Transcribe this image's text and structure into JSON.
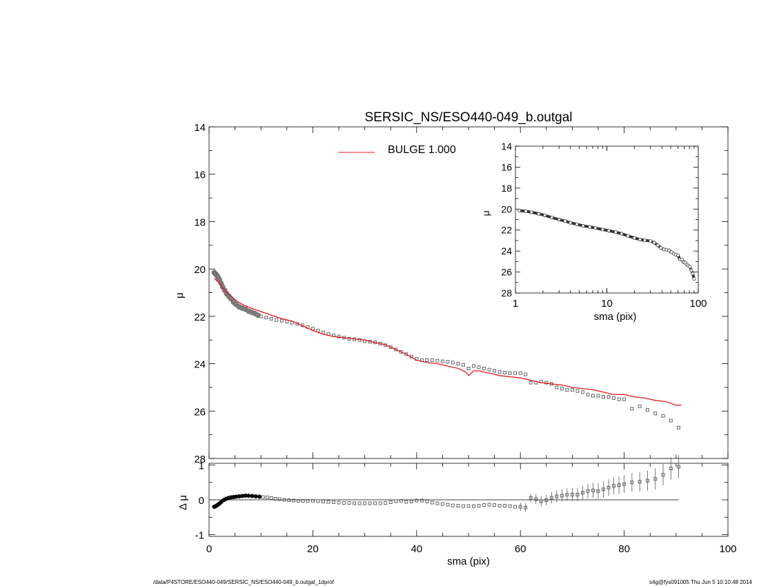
{
  "title": "SERSIC_NS/ESO440-049_b.outgal",
  "footer": {
    "path": "/data/P4STORE/ESO440-049/SERSIC_NS/ESO440-049_b.outgal_1dprof",
    "stamp": "s4g@fys091005  Thu Jun  5 10:10:48 2014"
  },
  "colors": {
    "model": "#e41a1c",
    "data": "#808080",
    "axes": "#000000"
  },
  "chart_data": [
    {
      "name": "main",
      "type": "scatter",
      "title": "SERSIC_NS/ESO440-049_b.outgal",
      "xlabel": "sma (pix)",
      "ylabel": "μ",
      "xlim": [
        0,
        100
      ],
      "ylim": [
        28,
        14
      ],
      "y_inverted": true,
      "x_ticks": [
        "0",
        "20",
        "40",
        "60",
        "80",
        "100"
      ],
      "y_ticks": [
        "14",
        "16",
        "18",
        "20",
        "22",
        "24",
        "26",
        "28"
      ],
      "legend": [
        {
          "label": "BULGE  1.000",
          "color": "#e41a1c"
        }
      ],
      "legend_position": "top-center",
      "series": [
        {
          "name": "BULGE  1.000",
          "kind": "line",
          "color": "#e41a1c",
          "x": [
            1,
            2,
            3,
            4,
            5,
            6,
            8,
            10,
            12,
            14,
            16,
            18,
            20,
            22,
            24,
            26,
            28,
            30,
            32,
            34,
            36,
            38,
            40,
            42,
            44,
            46,
            48,
            49.5,
            50,
            51,
            52,
            54,
            56,
            58,
            60,
            62,
            64,
            66,
            68,
            70,
            72,
            74,
            76,
            78,
            80,
            82,
            84,
            86,
            88,
            90,
            91
          ],
          "y": [
            20.4,
            20.6,
            20.9,
            21.1,
            21.3,
            21.45,
            21.65,
            21.8,
            21.95,
            22.1,
            22.2,
            22.4,
            22.6,
            22.75,
            22.85,
            22.9,
            22.95,
            23.0,
            23.1,
            23.2,
            23.4,
            23.6,
            23.85,
            23.95,
            24.0,
            24.1,
            24.2,
            24.35,
            24.5,
            24.3,
            24.3,
            24.4,
            24.5,
            24.55,
            24.6,
            24.7,
            24.8,
            24.85,
            24.9,
            25.0,
            25.05,
            25.1,
            25.2,
            25.3,
            25.3,
            25.4,
            25.45,
            25.55,
            25.6,
            25.75,
            25.75
          ]
        },
        {
          "name": "data",
          "kind": "points",
          "color": "#808080",
          "x": [
            1.0,
            1.2,
            1.4,
            1.6,
            1.8,
            2.0,
            2.3,
            2.6,
            3.0,
            3.4,
            3.8,
            4.2,
            4.7,
            5.2,
            5.8,
            6.4,
            7.0,
            7.6,
            8.2,
            8.8,
            9.4,
            10.0,
            11.0,
            12.0,
            13.0,
            14.0,
            15.0,
            16.0,
            17.0,
            18.0,
            19.0,
            20.0,
            21.0,
            22.0,
            23.0,
            24.0,
            25.0,
            26.0,
            27.0,
            28.0,
            29.0,
            30.0,
            31.0,
            32.0,
            33.0,
            34.0,
            35.0,
            36.0,
            37.0,
            38.0,
            39.0,
            40.0,
            41.0,
            42.0,
            43.0,
            44.0,
            45.0,
            46.0,
            47.0,
            48.0,
            49.0,
            50.0,
            51.0,
            52.0,
            53.0,
            54.0,
            55.0,
            56.0,
            57.0,
            58.0,
            59.0,
            60.0,
            61.0,
            62.0,
            63.0,
            64.0,
            65.0,
            66.0,
            67.0,
            68.0,
            69.0,
            70.0,
            71.0,
            72.0,
            73.0,
            74.0,
            75.0,
            76.0,
            77.0,
            78.0,
            79.0,
            80.0,
            81.5,
            83.0,
            84.5,
            86.0,
            87.5,
            89.0,
            90.5
          ],
          "y": [
            20.15,
            20.2,
            20.25,
            20.3,
            20.38,
            20.45,
            20.6,
            20.75,
            20.9,
            21.05,
            21.15,
            21.25,
            21.4,
            21.5,
            21.6,
            21.65,
            21.7,
            21.78,
            21.83,
            21.88,
            21.95,
            22.0,
            22.05,
            22.1,
            22.15,
            22.18,
            22.22,
            22.27,
            22.32,
            22.38,
            22.45,
            22.52,
            22.6,
            22.68,
            22.75,
            22.8,
            22.85,
            22.9,
            22.95,
            22.97,
            23.0,
            23.05,
            23.07,
            23.1,
            23.15,
            23.22,
            23.3,
            23.4,
            23.5,
            23.6,
            23.7,
            23.8,
            23.85,
            23.85,
            23.85,
            23.87,
            23.9,
            23.92,
            23.95,
            24.0,
            24.05,
            24.2,
            24.1,
            24.15,
            24.2,
            24.25,
            24.3,
            24.35,
            24.38,
            24.4,
            24.4,
            24.4,
            24.45,
            24.8,
            24.8,
            24.75,
            24.8,
            24.85,
            25.0,
            25.05,
            25.1,
            25.1,
            25.15,
            25.2,
            25.3,
            25.35,
            25.35,
            25.4,
            25.4,
            25.45,
            25.5,
            25.5,
            25.9,
            25.8,
            25.95,
            26.1,
            26.2,
            26.4,
            26.7
          ]
        }
      ]
    },
    {
      "name": "residual",
      "type": "scatter",
      "xlabel": "sma (pix)",
      "ylabel": "Δ μ",
      "xlim": [
        0,
        100
      ],
      "ylim": [
        -1.05,
        1.05
      ],
      "x_ticks": [
        "0",
        "20",
        "40",
        "60",
        "80",
        "100"
      ],
      "y_ticks": [
        "-1",
        "0",
        "1"
      ],
      "reference_line": 0,
      "series": [
        {
          "name": "residual",
          "kind": "points",
          "x": [
            1.0,
            1.3,
            1.6,
            1.9,
            2.2,
            2.5,
            2.9,
            3.3,
            3.7,
            4.2,
            4.7,
            5.2,
            5.8,
            6.4,
            7.0,
            7.6,
            8.3,
            9.0,
            9.7,
            10.4,
            11.2,
            12.0,
            12.8,
            13.6,
            14.5,
            15.4,
            16.3,
            17.2,
            18.1,
            19.0,
            20.0,
            21.0,
            22.0,
            23.0,
            24.0,
            25.0,
            26.0,
            27.0,
            28.0,
            29.0,
            30.0,
            31.0,
            32.0,
            33.0,
            34.0,
            35.0,
            36.0,
            37.0,
            38.0,
            39.0,
            40.0,
            41.0,
            42.0,
            43.0,
            44.0,
            45.0,
            46.0,
            47.0,
            48.0,
            49.0,
            50.0,
            51.0,
            52.0,
            53.0,
            54.0,
            55.0,
            56.0,
            57.0,
            58.0,
            59.0,
            60.0,
            61.0,
            62.0,
            63.0,
            64.0,
            65.0,
            66.0,
            67.0,
            68.0,
            69.0,
            70.0,
            71.0,
            72.0,
            73.0,
            74.0,
            75.0,
            76.0,
            77.0,
            78.0,
            79.0,
            80.0,
            81.5,
            83.0,
            84.5,
            86.0,
            87.5,
            89.0,
            90.5
          ],
          "y": [
            -0.2,
            -0.18,
            -0.15,
            -0.12,
            -0.08,
            -0.04,
            0.0,
            0.03,
            0.05,
            0.07,
            0.08,
            0.09,
            0.1,
            0.11,
            0.12,
            0.12,
            0.11,
            0.1,
            0.09,
            0.08,
            0.07,
            0.05,
            0.03,
            0.02,
            0.0,
            -0.01,
            -0.02,
            -0.03,
            -0.03,
            -0.03,
            -0.03,
            -0.04,
            -0.05,
            -0.06,
            -0.07,
            -0.08,
            -0.09,
            -0.09,
            -0.1,
            -0.1,
            -0.1,
            -0.1,
            -0.1,
            -0.1,
            -0.09,
            -0.07,
            -0.04,
            -0.03,
            -0.06,
            -0.05,
            -0.02,
            -0.02,
            -0.05,
            -0.08,
            -0.1,
            -0.12,
            -0.14,
            -0.16,
            -0.17,
            -0.18,
            -0.18,
            -0.18,
            -0.17,
            -0.15,
            -0.14,
            -0.15,
            -0.17,
            -0.17,
            -0.18,
            -0.2,
            -0.2,
            -0.22,
            0.05,
            0.02,
            -0.04,
            -0.01,
            0.06,
            0.1,
            0.12,
            0.15,
            0.15,
            0.15,
            0.2,
            0.25,
            0.27,
            0.25,
            0.3,
            0.35,
            0.4,
            0.42,
            0.45,
            0.5,
            0.52,
            0.55,
            0.6,
            0.72,
            0.9,
            0.95
          ],
          "yerr_from": 60
        }
      ]
    },
    {
      "name": "inset",
      "type": "scatter",
      "xlabel": "sma (pix)",
      "ylabel": "μ",
      "x_scale": "log",
      "xlim": [
        1,
        100
      ],
      "ylim": [
        28,
        14
      ],
      "y_inverted": true,
      "x_ticks": [
        "1",
        "10",
        "100"
      ],
      "y_ticks": [
        "14",
        "16",
        "18",
        "20",
        "22",
        "24",
        "26",
        "28"
      ],
      "series": [
        {
          "name": "inset-data",
          "kind": "points",
          "x": [
            1.1,
            1.3,
            1.5,
            1.8,
            2.1,
            2.5,
            3.0,
            3.5,
            4.0,
            4.7,
            5.5,
            6.5,
            7.5,
            9.0,
            10.5,
            12.5,
            14.5,
            17.0,
            20.0,
            23.0,
            26.0,
            30.0,
            33.0,
            36.0,
            39.0,
            42.0,
            45.0,
            48.0,
            51.0,
            54.0,
            57.0,
            60.0,
            63.0,
            66.0,
            69.0,
            72.0,
            75.0,
            78.0,
            81.0,
            84.0,
            87.0,
            90.0
          ],
          "y": [
            20.15,
            20.2,
            20.3,
            20.45,
            20.6,
            20.8,
            21.0,
            21.15,
            21.3,
            21.45,
            21.6,
            21.7,
            21.8,
            21.95,
            22.05,
            22.2,
            22.35,
            22.55,
            22.75,
            22.9,
            22.97,
            23.05,
            23.2,
            23.45,
            23.7,
            23.85,
            23.87,
            23.95,
            24.1,
            24.25,
            24.35,
            24.4,
            24.8,
            24.8,
            25.05,
            25.1,
            25.3,
            25.4,
            25.5,
            25.85,
            26.15,
            26.65
          ]
        }
      ]
    }
  ]
}
